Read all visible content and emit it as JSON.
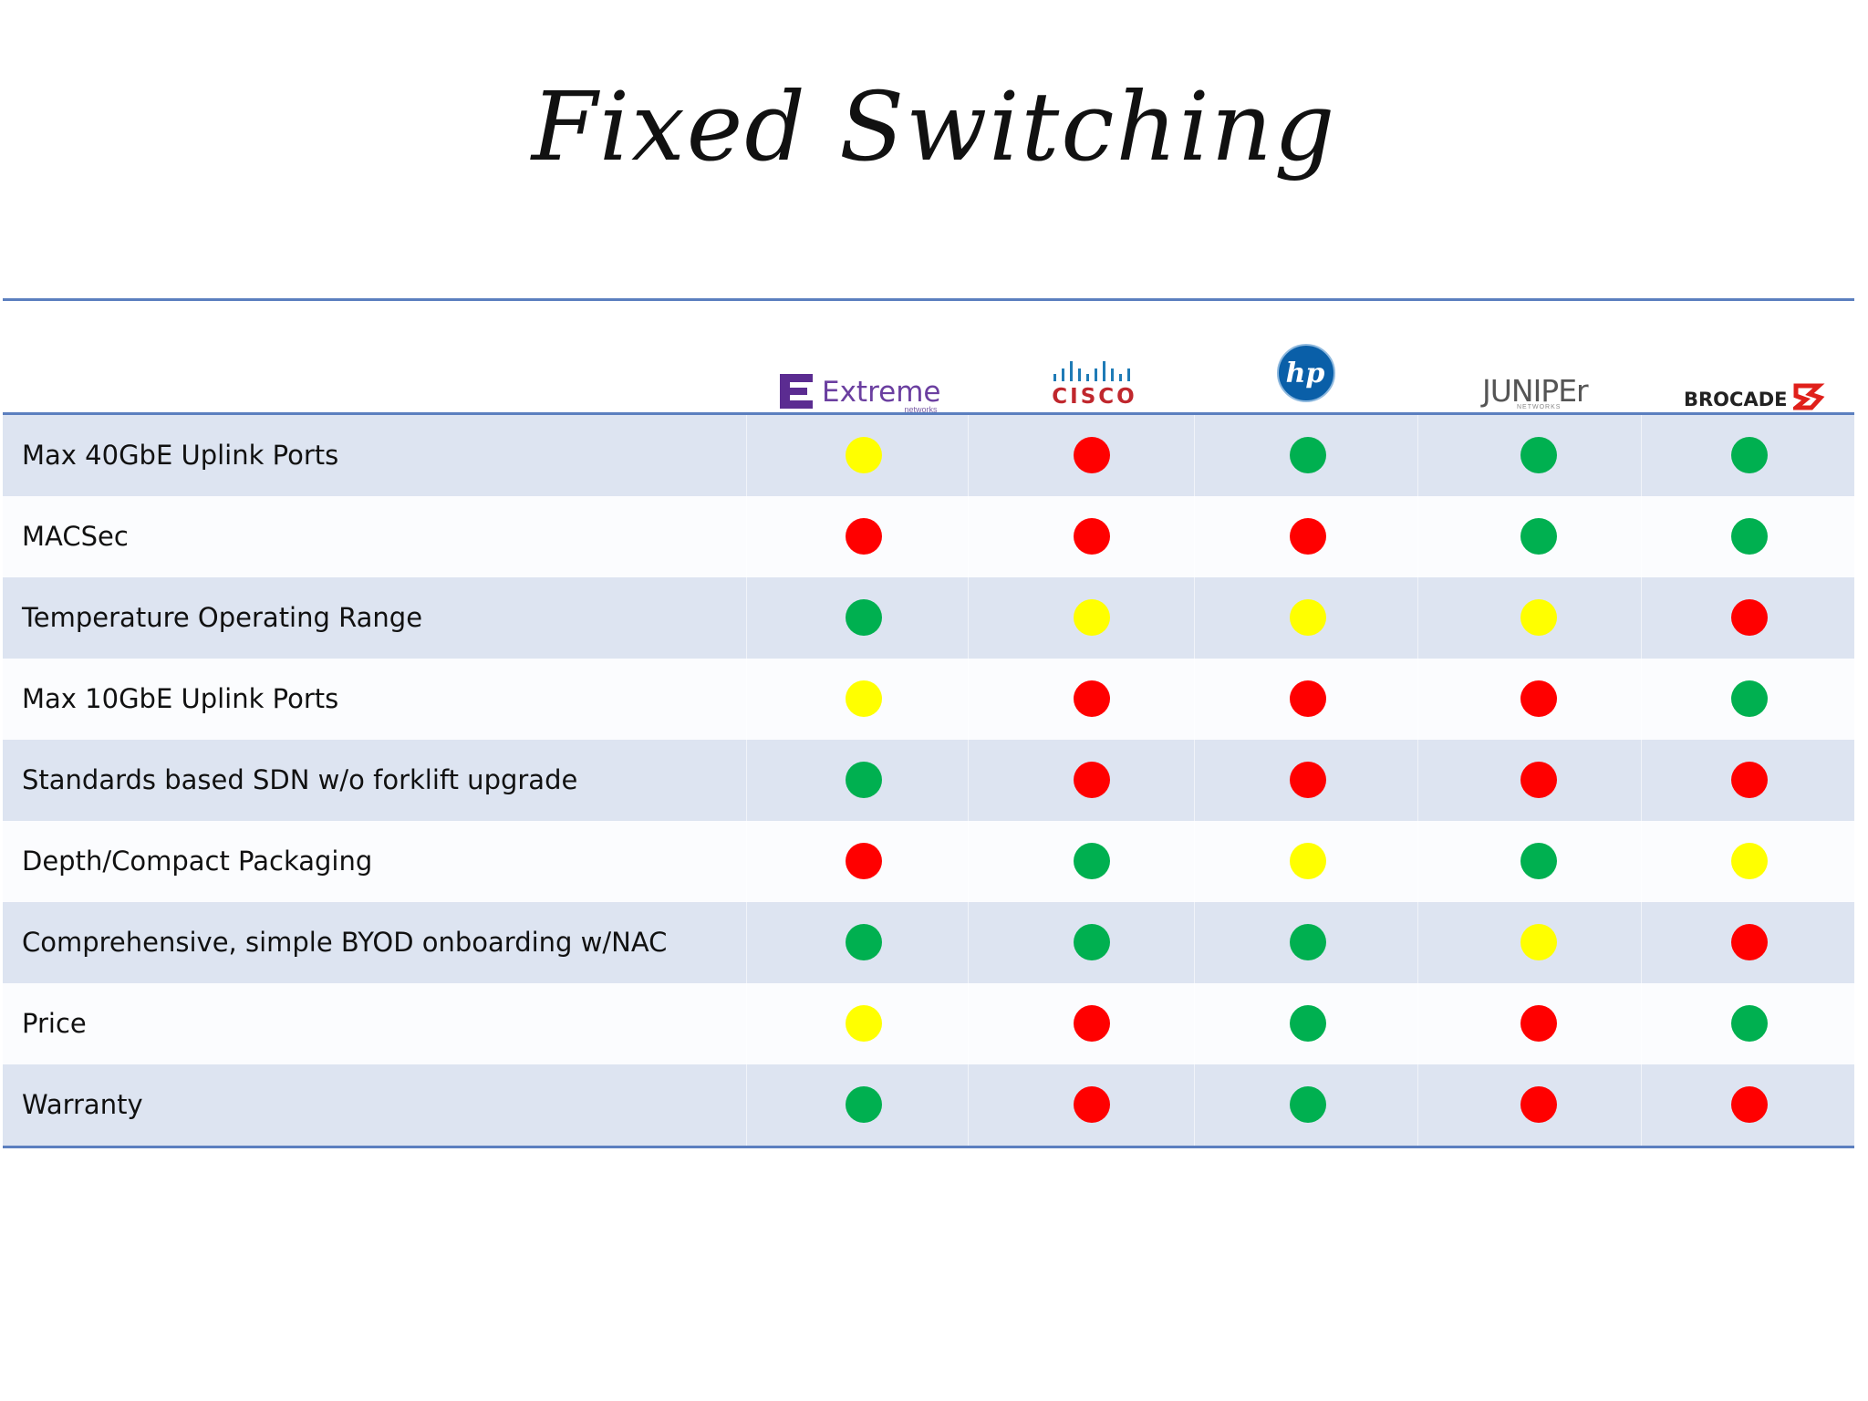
{
  "title": "Fixed Switching",
  "vendors": [
    {
      "name": "Extreme",
      "sub": "networks",
      "icon": "extreme-logo"
    },
    {
      "name": "CISCO",
      "icon": "cisco-logo"
    },
    {
      "name": "hp",
      "icon": "hp-logo"
    },
    {
      "name": "JUNIPEr",
      "sub": "NETWORKS",
      "icon": "juniper-logo"
    },
    {
      "name": "BROCADE",
      "icon": "brocade-logo"
    }
  ],
  "rows": [
    {
      "label": "Max 40GbE Uplink Ports",
      "ratings": [
        "yellow",
        "red",
        "green",
        "green",
        "green"
      ]
    },
    {
      "label": "MACSec",
      "ratings": [
        "red",
        "red",
        "red",
        "green",
        "green"
      ]
    },
    {
      "label": "Temperature Operating Range",
      "ratings": [
        "green",
        "yellow",
        "yellow",
        "yellow",
        "red"
      ]
    },
    {
      "label": "Max 10GbE Uplink Ports",
      "ratings": [
        "yellow",
        "red",
        "red",
        "red",
        "green"
      ]
    },
    {
      "label": "Standards based SDN w/o forklift upgrade",
      "ratings": [
        "green",
        "red",
        "red",
        "red",
        "red"
      ]
    },
    {
      "label": "Depth/Compact Packaging",
      "ratings": [
        "red",
        "green",
        "yellow",
        "green",
        "yellow"
      ]
    },
    {
      "label": "Comprehensive, simple BYOD onboarding w/NAC",
      "ratings": [
        "green",
        "green",
        "green",
        "yellow",
        "red"
      ]
    },
    {
      "label": "Price",
      "ratings": [
        "yellow",
        "red",
        "green",
        "red",
        "green"
      ]
    },
    {
      "label": "Warranty",
      "ratings": [
        "green",
        "red",
        "green",
        "red",
        "red"
      ]
    }
  ],
  "colors": {
    "red": "#ff0000",
    "green": "#00b050",
    "yellow": "#ffff00",
    "band": "#dde4f1",
    "rule": "#5b7fbf"
  }
}
